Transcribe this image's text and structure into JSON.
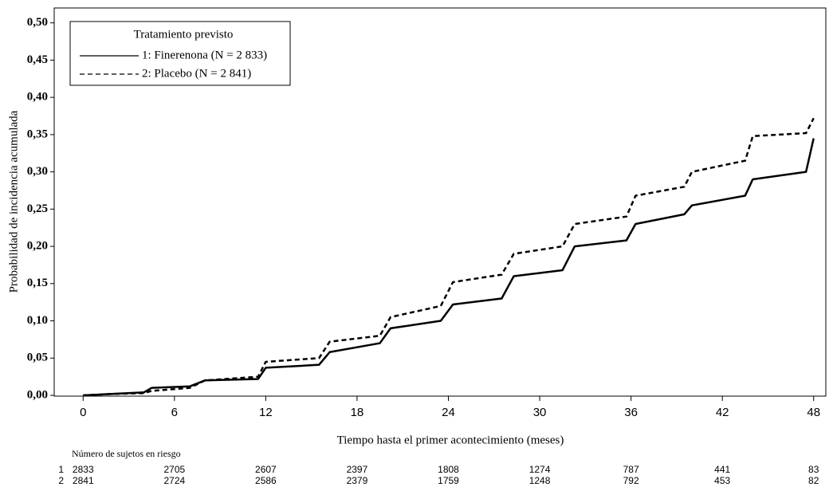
{
  "chart_data": {
    "type": "line",
    "y_label": "Probabilidad de incidencia acumulada",
    "x_label": "Tiempo hasta el primer acontecimiento (meses)",
    "legend_title": "Tratamiento previsto",
    "legend": "upper left",
    "x": [
      0,
      2,
      4,
      4.5,
      7,
      8,
      11.5,
      12,
      15.5,
      16.2,
      19.5,
      20.2,
      23.5,
      24.3,
      27.5,
      28.3,
      31.5,
      32.3,
      35.7,
      36.3,
      39.5,
      40,
      43.5,
      44,
      47.5,
      48
    ],
    "series": [
      {
        "name": "1: Finerenona (N = 2 833)",
        "color": "#000000",
        "dashed": false,
        "values": [
          0,
          0.002,
          0.004,
          0.01,
          0.012,
          0.02,
          0.022,
          0.037,
          0.041,
          0.058,
          0.07,
          0.09,
          0.1,
          0.122,
          0.13,
          0.16,
          0.168,
          0.2,
          0.208,
          0.23,
          0.243,
          0.255,
          0.268,
          0.29,
          0.3,
          0.345
        ]
      },
      {
        "name": "2: Placebo (N = 2 841)",
        "color": "#000000",
        "dashed": true,
        "values": [
          0,
          0.002,
          0.003,
          0.006,
          0.01,
          0.02,
          0.025,
          0.045,
          0.05,
          0.072,
          0.08,
          0.105,
          0.12,
          0.152,
          0.162,
          0.19,
          0.2,
          0.23,
          0.24,
          0.268,
          0.28,
          0.3,
          0.315,
          0.348,
          0.352,
          0.372
        ]
      }
    ],
    "xlim": [
      -1.9,
      48.8
    ],
    "ylim": [
      0,
      0.52
    ],
    "xticks": [
      0,
      6,
      12,
      18,
      24,
      30,
      36,
      42,
      48
    ],
    "yticks": [
      {
        "value": 0,
        "label": "0,00"
      },
      {
        "value": 0.05,
        "label": "0,05"
      },
      {
        "value": 0.1,
        "label": "0,10"
      },
      {
        "value": 0.15,
        "label": "0,15"
      },
      {
        "value": 0.2,
        "label": "0,20"
      },
      {
        "value": 0.25,
        "label": "0,25"
      },
      {
        "value": 0.3,
        "label": "0,30"
      },
      {
        "value": 0.35,
        "label": "0,35"
      },
      {
        "value": 0.4,
        "label": "0,40"
      },
      {
        "value": 0.45,
        "label": "0,45"
      },
      {
        "value": 0.5,
        "label": "0,50"
      }
    ],
    "risk_table": {
      "title": "Número de sujetos en riesgo",
      "rows": [
        {
          "label": "1",
          "values": [
            2833,
            2705,
            2607,
            2397,
            1808,
            1274,
            787,
            441,
            83
          ]
        },
        {
          "label": "2",
          "values": [
            2841,
            2724,
            2586,
            2379,
            1759,
            1248,
            792,
            453,
            82
          ]
        }
      ]
    }
  }
}
